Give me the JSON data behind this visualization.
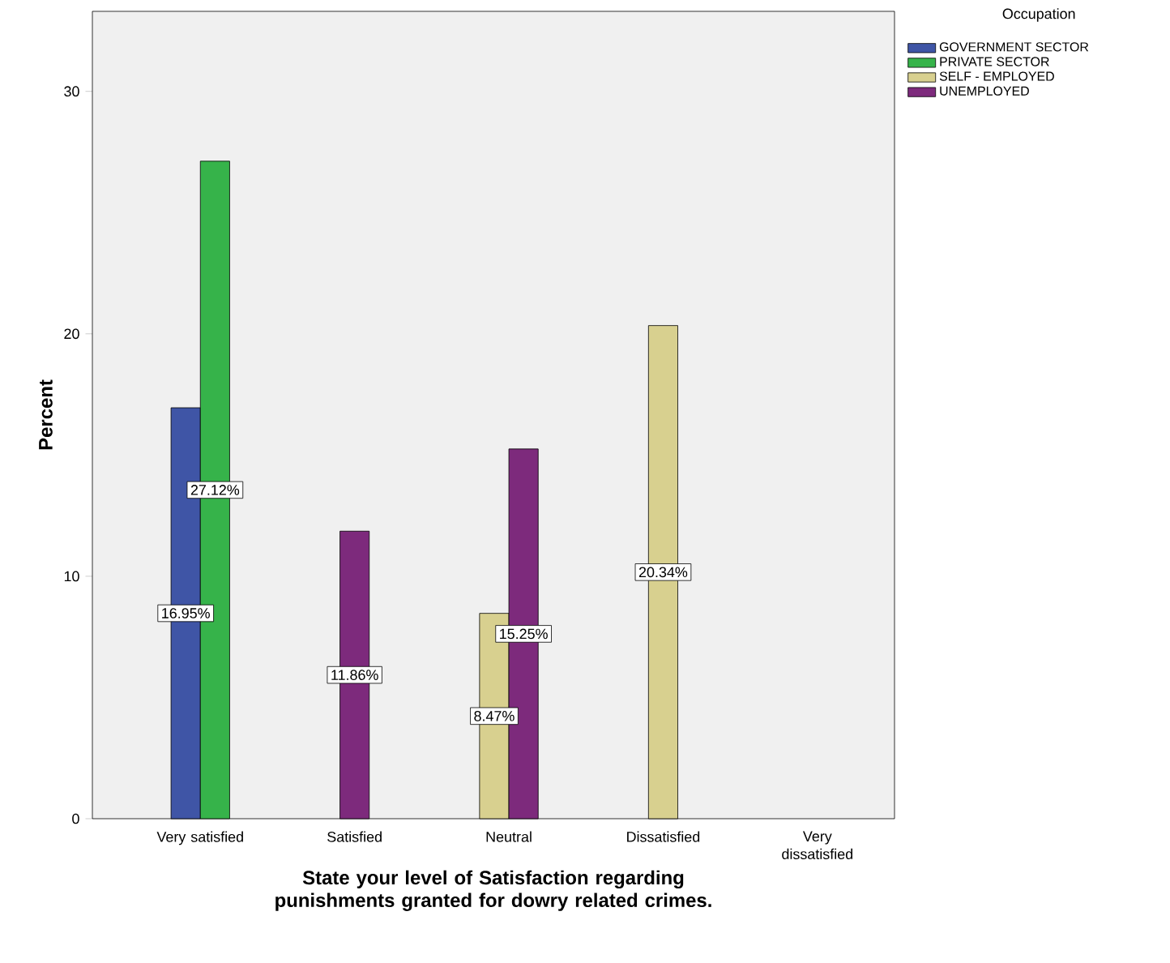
{
  "chart_data": {
    "type": "bar",
    "xlabel": "State your level of Satisfaction regarding punishments granted for dowry related crimes.",
    "ylabel": "Percent",
    "legend_title": "Occupation",
    "legend": "right",
    "categories": [
      "Very satisfied",
      "Satisfied",
      "Neutral",
      "Dissatisfied",
      "Very dissatisfied"
    ],
    "ylim": [
      0,
      33.3
    ],
    "yticks": [
      0,
      10,
      20,
      30
    ],
    "series": [
      {
        "name": "GOVERNMENT SECTOR",
        "color": "#3f55a6",
        "values": [
          16.95,
          null,
          null,
          null,
          null
        ],
        "value_labels": [
          "16.95%",
          null,
          null,
          null,
          null
        ]
      },
      {
        "name": "PRIVATE SECTOR",
        "color": "#36b34a",
        "values": [
          27.12,
          null,
          null,
          null,
          null
        ],
        "value_labels": [
          "27.12%",
          null,
          null,
          null,
          null
        ]
      },
      {
        "name": "SELF - EMPLOYED",
        "color": "#d8d08f",
        "values": [
          null,
          null,
          8.47,
          20.34,
          null
        ],
        "value_labels": [
          null,
          null,
          "8.47%",
          "20.34%",
          null
        ]
      },
      {
        "name": "UNEMPLOYED",
        "color": "#7d2a7c",
        "values": [
          null,
          11.86,
          15.25,
          null,
          null
        ],
        "value_labels": [
          null,
          "11.86%",
          "15.25%",
          null,
          null
        ]
      }
    ]
  }
}
